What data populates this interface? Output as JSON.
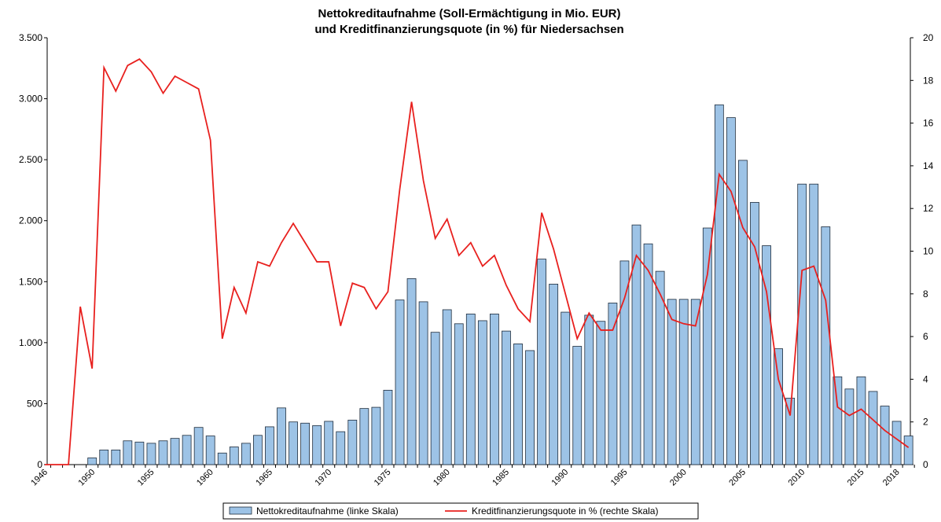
{
  "chart_data": {
    "type": "bar-line",
    "title": [
      "Nettokreditaufnahme (Soll-Ermächtigung in Mio. EUR)",
      "und Kreditfinanzierungsquote (in %) für Niedersachsen"
    ],
    "categories": [
      "1946",
      null,
      null,
      null,
      "1950",
      null,
      null,
      null,
      null,
      "1955",
      null,
      null,
      null,
      null,
      "1960",
      null,
      null,
      null,
      null,
      "1965",
      null,
      null,
      null,
      null,
      "1970",
      null,
      null,
      null,
      null,
      "1975",
      null,
      null,
      null,
      null,
      "1980",
      null,
      null,
      null,
      null,
      "1985",
      null,
      null,
      null,
      null,
      "1990",
      null,
      null,
      null,
      null,
      "1995",
      null,
      null,
      null,
      null,
      "2000",
      null,
      null,
      null,
      null,
      "2005",
      null,
      null,
      null,
      null,
      "2010",
      null,
      null,
      null,
      null,
      "2015",
      null,
      null,
      "2018",
      null
    ],
    "series": [
      {
        "name": "Nettokreditaufnahme (linke Skala)",
        "color": "#9dc3e6",
        "type": "bar",
        "values": [
          null,
          null,
          null,
          null,
          55,
          120,
          120,
          195,
          185,
          175,
          195,
          215,
          240,
          305,
          235,
          95,
          145,
          175,
          240,
          310,
          465,
          350,
          340,
          320,
          355,
          270,
          365,
          460,
          470,
          610,
          1350,
          1525,
          1335,
          1085,
          1270,
          1155,
          1235,
          1180,
          1235,
          1095,
          990,
          935,
          1685,
          1480,
          1250,
          970,
          1225,
          1175,
          1325,
          1670,
          1965,
          1810,
          1585,
          1355,
          1355,
          1355,
          1940,
          2950,
          2845,
          2495,
          2150,
          1795,
          950,
          545,
          2300,
          2300,
          1950,
          720,
          620,
          720,
          600,
          480,
          355,
          235
        ]
      },
      {
        "name": "Kreditfinanzierungsquote in % (rechte Skala)",
        "color": "#e8201e",
        "type": "line",
        "axis": "y2",
        "values": [
          0,
          0,
          0,
          7.4,
          4.5,
          18.6,
          17.5,
          18.7,
          19.0,
          18.4,
          17.4,
          18.2,
          17.9,
          17.6,
          15.2,
          5.9,
          8.3,
          7.1,
          9.5,
          9.3,
          10.4,
          11.3,
          10.4,
          9.5,
          9.5,
          6.5,
          8.5,
          8.3,
          7.3,
          8.1,
          12.9,
          17.0,
          13.3,
          10.6,
          11.5,
          9.8,
          10.4,
          9.3,
          9.8,
          8.4,
          7.3,
          6.7,
          11.8,
          10.1,
          8.0,
          5.9,
          7.1,
          6.3,
          6.3,
          7.8,
          9.8,
          9.1,
          8.0,
          6.8,
          6.6,
          6.5,
          8.9,
          13.6,
          12.8,
          11.1,
          10.2,
          8.1,
          4.0,
          2.3,
          9.1,
          9.3,
          7.7,
          2.7,
          2.3,
          2.6,
          2.1,
          1.6,
          1.2,
          0.8
        ]
      }
    ],
    "ylim": [
      0,
      3500
    ],
    "yticks": [
      0,
      500,
      {
        "value": 1000,
        "label": "1.000"
      },
      {
        "value": 1500,
        "label": "1.500"
      },
      {
        "value": 2000,
        "label": "2.000"
      },
      {
        "value": 2500,
        "label": "2.500"
      },
      {
        "value": 3000,
        "label": "3.000"
      },
      {
        "value": 3500,
        "label": "3.500"
      }
    ],
    "y2lim": [
      0,
      20
    ],
    "y2ticks": [
      0,
      2,
      4,
      6,
      8,
      10,
      12,
      14,
      16,
      18,
      20
    ],
    "legend": "bottom"
  }
}
